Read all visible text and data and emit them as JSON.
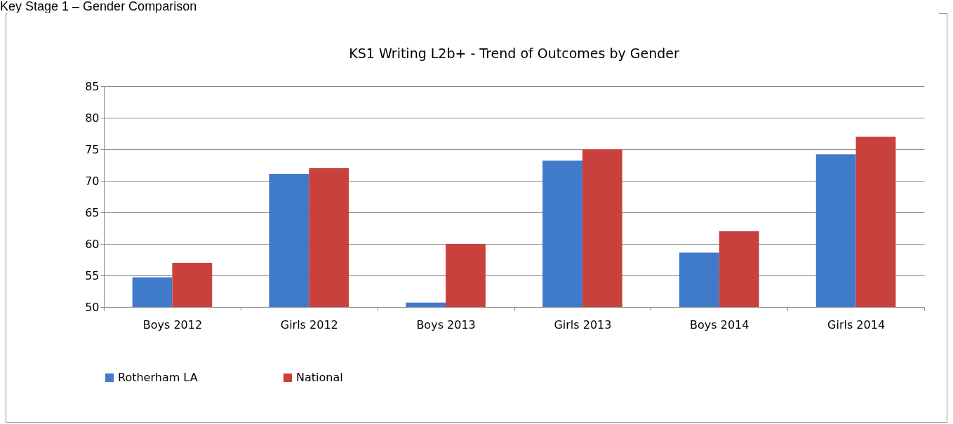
{
  "chart_data": {
    "type": "bar",
    "title": "KS1 Writing L2b+ - Trend of Outcomes  by Gender",
    "annotations": [
      "Key Stage 1 – Gender Comparison"
    ],
    "categories": [
      "Boys 2012",
      "Girls 2012",
      "Boys 2013",
      "Girls 2013",
      "Boys 2014",
      "Girls 2014"
    ],
    "series": [
      {
        "name": "Rotherham LA",
        "color": "#3f7acb",
        "values": [
          54.7,
          71.1,
          50.7,
          73.2,
          58.6,
          74.2
        ]
      },
      {
        "name": "National",
        "color": "#c9413c",
        "values": [
          57,
          72,
          60,
          75,
          62,
          77
        ]
      }
    ],
    "ylim": [
      50,
      85
    ],
    "yticks": [
      50,
      55,
      60,
      65,
      70,
      75,
      80,
      85
    ],
    "grid": "y",
    "legend": "bottom"
  }
}
